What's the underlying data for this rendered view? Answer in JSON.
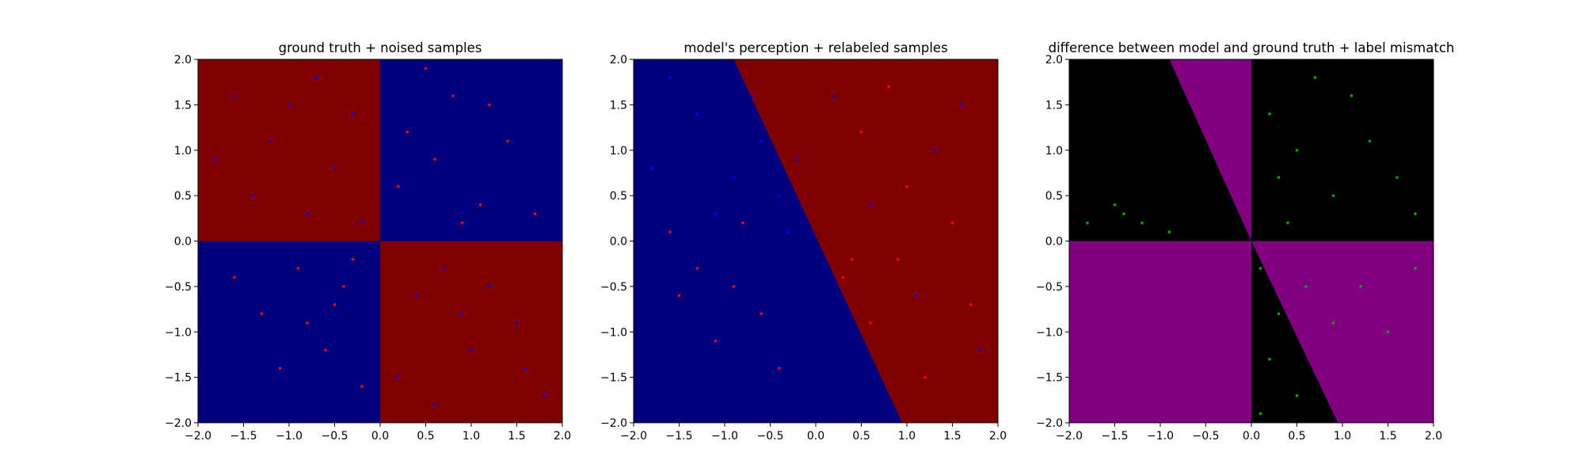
{
  "figure": {
    "panels": [
      {
        "title": "ground truth + noised samples"
      },
      {
        "title": "model's perception + relabeled samples"
      },
      {
        "title": "difference between model and ground truth + label mismatch"
      }
    ]
  },
  "colors": {
    "red_region": "#800000",
    "blue_region": "#00007f",
    "red_point": "#ff0000",
    "blue_point": "#0000ff",
    "diff_region": "#800080",
    "agree_region": "#000000",
    "mismatch_point": "#00aa00"
  },
  "chart_data": [
    {
      "type": "scatter",
      "title": "ground truth + noised samples",
      "xlabel": "",
      "ylabel": "",
      "xlim": [
        -2.0,
        2.0
      ],
      "ylim": [
        -2.0,
        2.0
      ],
      "xticks": [
        "−2.0",
        "−1.5",
        "−1.0",
        "−0.5",
        "0.0",
        "0.5",
        "1.0",
        "1.5",
        "2.0"
      ],
      "yticks": [
        "−2.0",
        "−1.5",
        "−1.0",
        "−0.5",
        "0.0",
        "0.5",
        "1.0",
        "1.5",
        "2.0"
      ],
      "background": "quadrant regions: red where x*y<0, blue where x*y>0 (approx.)",
      "series": [
        {
          "color": "#ff0000",
          "points": [
            [
              0.3,
              1.2
            ],
            [
              0.6,
              0.9
            ],
            [
              1.1,
              0.4
            ],
            [
              0.8,
              1.6
            ],
            [
              1.4,
              1.1
            ],
            [
              0.2,
              0.6
            ],
            [
              1.7,
              0.3
            ],
            [
              0.9,
              0.2
            ],
            [
              -0.4,
              -0.5
            ],
            [
              -0.9,
              -0.3
            ],
            [
              -0.6,
              -1.2
            ],
            [
              -1.3,
              -0.8
            ],
            [
              -0.2,
              -1.6
            ],
            [
              -1.6,
              -0.4
            ],
            [
              -0.8,
              -0.9
            ],
            [
              -0.3,
              -0.2
            ],
            [
              0.5,
              1.9
            ],
            [
              1.2,
              1.5
            ],
            [
              -1.1,
              -1.4
            ],
            [
              -0.5,
              -0.7
            ]
          ]
        },
        {
          "color": "#0000ff",
          "points": [
            [
              -0.5,
              0.8
            ],
            [
              -1.2,
              1.1
            ],
            [
              -0.8,
              0.3
            ],
            [
              -1.6,
              1.6
            ],
            [
              -0.3,
              1.4
            ],
            [
              -1.4,
              0.5
            ],
            [
              -0.7,
              1.8
            ],
            [
              -1.8,
              0.9
            ],
            [
              0.4,
              -0.6
            ],
            [
              1.0,
              -1.2
            ],
            [
              0.7,
              -0.3
            ],
            [
              1.5,
              -0.9
            ],
            [
              0.2,
              -1.5
            ],
            [
              1.8,
              -1.7
            ],
            [
              1.2,
              -0.5
            ],
            [
              0.6,
              -1.8
            ],
            [
              -0.2,
              0.2
            ],
            [
              -1.0,
              1.5
            ],
            [
              0.9,
              -0.8
            ],
            [
              1.6,
              -1.4
            ]
          ]
        }
      ]
    },
    {
      "type": "scatter",
      "title": "model's perception + relabeled samples",
      "xlabel": "",
      "ylabel": "",
      "xlim": [
        -2.0,
        2.0
      ],
      "ylim": [
        -2.0,
        2.0
      ],
      "xticks": [
        "−2.0",
        "−1.5",
        "−1.0",
        "−0.5",
        "0.0",
        "0.5",
        "1.0",
        "1.5",
        "2.0"
      ],
      "yticks": [
        "−2.0",
        "−1.5",
        "−1.0",
        "−0.5",
        "0.0",
        "0.5",
        "1.0",
        "1.5",
        "2.0"
      ],
      "background": "blue left of boundary line through (-0.9, 2.0) and (0.95, -2.0); red on the right",
      "boundary": [
        [
          -0.9,
          2.0
        ],
        [
          0.95,
          -2.0
        ]
      ],
      "series": [
        {
          "color": "#ff0000",
          "points": [
            [
              0.5,
              1.2
            ],
            [
              1.0,
              0.6
            ],
            [
              1.5,
              0.2
            ],
            [
              0.3,
              -0.4
            ],
            [
              0.6,
              -0.9
            ],
            [
              1.2,
              -1.5
            ],
            [
              0.9,
              -0.2
            ],
            [
              -0.8,
              0.2
            ],
            [
              -1.3,
              -0.3
            ],
            [
              -0.6,
              -0.8
            ],
            [
              -1.1,
              -1.1
            ],
            [
              -0.4,
              -1.4
            ],
            [
              -1.6,
              0.1
            ],
            [
              0.4,
              -0.2
            ],
            [
              1.7,
              -0.7
            ],
            [
              0.8,
              1.7
            ],
            [
              -0.9,
              -0.5
            ],
            [
              -1.5,
              -0.6
            ]
          ]
        },
        {
          "color": "#0000ff",
          "points": [
            [
              -0.6,
              1.1
            ],
            [
              -0.9,
              0.7
            ],
            [
              -1.3,
              1.4
            ],
            [
              -0.4,
              0.5
            ],
            [
              -1.1,
              0.3
            ],
            [
              -0.2,
              0.9
            ],
            [
              -1.6,
              1.8
            ],
            [
              -0.7,
              1.6
            ],
            [
              -0.3,
              0.1
            ],
            [
              -1.8,
              0.8
            ],
            [
              0.2,
              1.6
            ],
            [
              1.3,
              1.0
            ],
            [
              1.6,
              1.5
            ],
            [
              0.6,
              0.4
            ],
            [
              1.1,
              -0.6
            ],
            [
              1.8,
              -1.2
            ]
          ]
        }
      ]
    },
    {
      "type": "scatter",
      "title": "difference between model and ground truth + label mismatch",
      "xlabel": "",
      "ylabel": "",
      "xlim": [
        -2.0,
        2.0
      ],
      "ylim": [
        -2.0,
        2.0
      ],
      "xticks": [
        "−2.0",
        "−1.5",
        "−1.0",
        "−0.5",
        "0.0",
        "0.5",
        "1.0",
        "1.5",
        "2.0"
      ],
      "yticks": [
        "−2.0",
        "−1.5",
        "−1.0",
        "−0.5",
        "0.0",
        "0.5",
        "1.0",
        "1.5",
        "2.0"
      ],
      "background": "purple where model and ground truth differ, black where they agree",
      "series": [
        {
          "color": "#00aa00",
          "points": [
            [
              0.2,
              1.4
            ],
            [
              0.5,
              1.0
            ],
            [
              0.9,
              0.5
            ],
            [
              0.4,
              0.2
            ],
            [
              1.3,
              1.1
            ],
            [
              1.6,
              0.7
            ],
            [
              0.7,
              1.8
            ],
            [
              0.3,
              0.7
            ],
            [
              1.1,
              1.6
            ],
            [
              1.8,
              0.3
            ],
            [
              -1.5,
              0.4
            ],
            [
              -1.8,
              0.2
            ],
            [
              -1.2,
              0.2
            ],
            [
              -0.9,
              0.1
            ],
            [
              -1.4,
              0.3
            ],
            [
              0.1,
              -0.3
            ],
            [
              0.3,
              -0.8
            ],
            [
              0.2,
              -1.3
            ],
            [
              0.5,
              -1.7
            ],
            [
              0.6,
              -0.5
            ],
            [
              0.9,
              -0.9
            ],
            [
              1.2,
              -0.5
            ],
            [
              1.5,
              -1.0
            ],
            [
              1.8,
              -0.3
            ],
            [
              0.1,
              -1.9
            ]
          ]
        }
      ]
    }
  ]
}
